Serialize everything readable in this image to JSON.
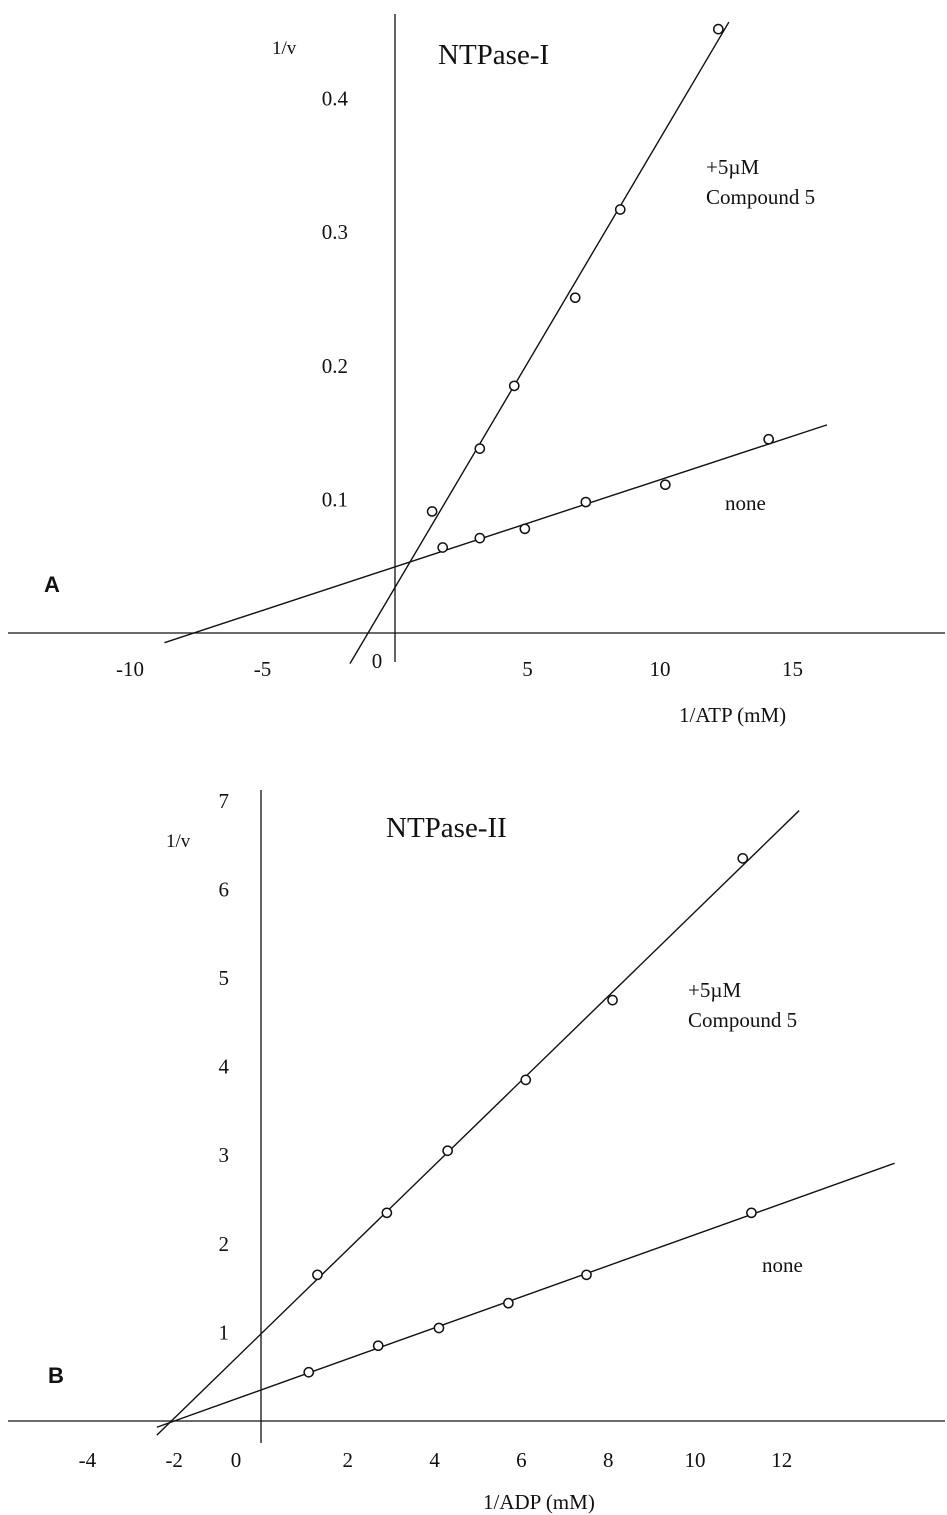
{
  "chart_data": [
    {
      "type": "scatter",
      "panel_label": "A",
      "title": "NTPase-I",
      "xlabel": "1/ATP (mM)",
      "ylabel": "1/v",
      "xlim": [
        -14.5,
        20.5
      ],
      "ylim": [
        -0.02,
        0.45
      ],
      "x_ticks": [
        "-10",
        "-5",
        "0",
        "5",
        "10",
        "15"
      ],
      "y_ticks": [
        "0.1",
        "0.2",
        "0.3",
        "0.4"
      ],
      "grid": false,
      "series": [
        {
          "name": "+5µM Compound 5",
          "points": [
            [
              1.4,
              0.091
            ],
            [
              3.2,
              0.138
            ],
            [
              4.5,
              0.185
            ],
            [
              6.8,
              0.251
            ],
            [
              8.5,
              0.317
            ],
            [
              12.2,
              0.452
            ]
          ],
          "fit_line": {
            "x_start": -1.7,
            "x_end": 12.6
          }
        },
        {
          "name": "none",
          "points": [
            [
              1.8,
              0.064
            ],
            [
              3.2,
              0.071
            ],
            [
              4.9,
              0.078
            ],
            [
              7.2,
              0.098
            ],
            [
              10.2,
              0.111
            ],
            [
              14.1,
              0.145
            ]
          ],
          "fit_line": {
            "x_start": -8.7,
            "x_end": 16.3
          }
        }
      ]
    },
    {
      "type": "scatter",
      "panel_label": "B",
      "title": "NTPase-II",
      "xlabel": "1/ADP (mM)",
      "ylabel": "1/v",
      "xlim": [
        -5.1,
        15.3
      ],
      "ylim": [
        -0.3,
        7.1
      ],
      "x_ticks": [
        "-4",
        "-2",
        "0",
        "2",
        "4",
        "6",
        "8",
        "10",
        "12"
      ],
      "y_ticks": [
        "1",
        "2",
        "3",
        "4",
        "5",
        "6",
        "7"
      ],
      "grid": false,
      "series": [
        {
          "name": "+5µM Compound 5",
          "points": [
            [
              1.3,
              1.65
            ],
            [
              2.9,
              2.35
            ],
            [
              4.3,
              3.05
            ],
            [
              6.1,
              3.85
            ],
            [
              8.1,
              4.75
            ],
            [
              11.1,
              6.35
            ]
          ],
          "fit_line": {
            "x_start": -2.4,
            "x_end": 12.4
          }
        },
        {
          "name": "none",
          "points": [
            [
              1.1,
              0.55
            ],
            [
              2.7,
              0.85
            ],
            [
              4.1,
              1.05
            ],
            [
              5.7,
              1.33
            ],
            [
              7.5,
              1.65
            ],
            [
              11.3,
              2.35
            ]
          ],
          "fit_line": {
            "x_start": -2.4,
            "x_end": 14.6
          }
        }
      ]
    }
  ]
}
